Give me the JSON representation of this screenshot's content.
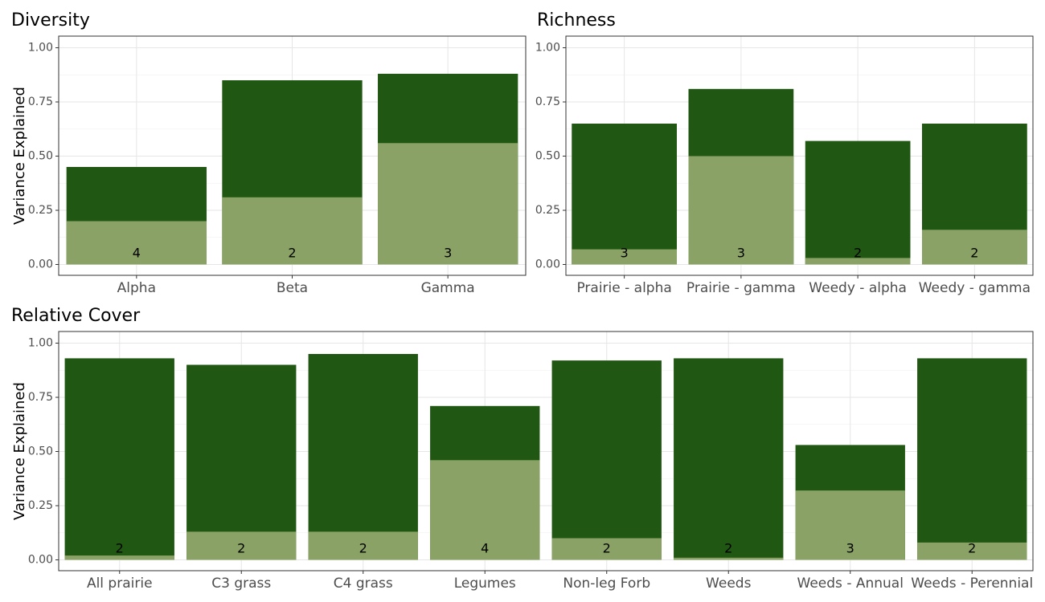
{
  "colors": {
    "total": "#205712",
    "fixed": "#8aa266"
  },
  "chart_data": [
    {
      "type": "bar",
      "title": "Diversity",
      "ylabel": "Variance Explained",
      "ylim": [
        0,
        1
      ],
      "yticks": [
        "0.00",
        "0.25",
        "0.50",
        "0.75",
        "1.00"
      ],
      "categories": [
        "Alpha",
        "Beta",
        "Gamma"
      ],
      "series": [
        {
          "values": [
            0.45,
            0.85,
            0.88
          ]
        },
        {
          "values": [
            0.2,
            0.31,
            0.56
          ]
        }
      ],
      "labels": [
        "4",
        "2",
        "3"
      ]
    },
    {
      "type": "bar",
      "title": "Richness",
      "ylabel": "",
      "ylim": [
        0,
        1
      ],
      "yticks": [
        "0.00",
        "0.25",
        "0.50",
        "0.75",
        "1.00"
      ],
      "categories": [
        "Prairie - alpha",
        "Prairie - gamma",
        "Weedy - alpha",
        "Weedy - gamma"
      ],
      "series": [
        {
          "values": [
            0.65,
            0.81,
            0.57,
            0.65
          ]
        },
        {
          "values": [
            0.07,
            0.5,
            0.03,
            0.16
          ]
        }
      ],
      "labels": [
        "3",
        "3",
        "2",
        "2"
      ]
    },
    {
      "type": "bar",
      "title": "Relative Cover",
      "ylabel": "Variance Explained",
      "ylim": [
        0,
        1
      ],
      "yticks": [
        "0.00",
        "0.25",
        "0.50",
        "0.75",
        "1.00"
      ],
      "categories": [
        "All prairie",
        "C3 grass",
        "C4 grass",
        "Legumes",
        "Non-leg Forb",
        "Weeds",
        "Weeds - Annual",
        "Weeds - Perennial"
      ],
      "series": [
        {
          "values": [
            0.93,
            0.9,
            0.95,
            0.71,
            0.92,
            0.93,
            0.53,
            0.93
          ]
        },
        {
          "values": [
            0.02,
            0.13,
            0.13,
            0.46,
            0.1,
            0.01,
            0.32,
            0.08
          ]
        }
      ],
      "labels": [
        "2",
        "2",
        "2",
        "4",
        "2",
        "2",
        "3",
        "2"
      ]
    }
  ]
}
